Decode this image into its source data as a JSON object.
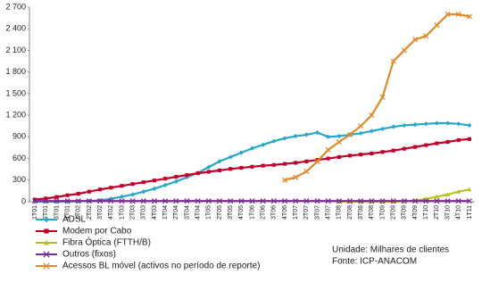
{
  "chart_data": {
    "type": "line",
    "categories": [
      "1T01",
      "2T01",
      "3T01",
      "4T01",
      "1T02",
      "2T02",
      "3T02",
      "4T02",
      "1T03",
      "2T03",
      "3T03",
      "4T03",
      "1T04",
      "2T04",
      "3T04",
      "4T04",
      "1T05",
      "2T05",
      "3T05",
      "4T05",
      "1T06",
      "2T06",
      "3T06",
      "4T06",
      "1T07",
      "2T07",
      "3T07",
      "4T07",
      "1T08",
      "2T08",
      "3T08",
      "4T08",
      "1T09",
      "2T09",
      "3T09",
      "4T09",
      "1T10",
      "2T10",
      "3T10",
      "4T10",
      "1T11"
    ],
    "series": [
      {
        "name": "ADSL",
        "color": "#2aa7c8",
        "marker": "diamond",
        "values": [
          0,
          0,
          0,
          2,
          5,
          10,
          20,
          40,
          70,
          100,
          140,
          180,
          230,
          280,
          340,
          400,
          480,
          560,
          620,
          680,
          740,
          790,
          840,
          880,
          910,
          930,
          960,
          900,
          910,
          930,
          950,
          980,
          1010,
          1040,
          1060,
          1070,
          1080,
          1090,
          1090,
          1080,
          1060
        ]
      },
      {
        "name": "Modem por Cabo",
        "color": "#c0002a",
        "marker": "square",
        "values": [
          30,
          45,
          65,
          90,
          110,
          140,
          170,
          195,
          220,
          245,
          270,
          295,
          320,
          345,
          370,
          395,
          415,
          435,
          455,
          470,
          485,
          500,
          510,
          525,
          540,
          560,
          580,
          600,
          620,
          640,
          655,
          670,
          690,
          710,
          735,
          760,
          785,
          810,
          830,
          855,
          870
        ]
      },
      {
        "name": "Fibra Óptica (FTTH/B)",
        "color": "#b5c31f",
        "marker": "triangle",
        "values": [
          null,
          null,
          null,
          null,
          null,
          null,
          null,
          null,
          null,
          null,
          null,
          null,
          null,
          null,
          null,
          null,
          null,
          null,
          null,
          null,
          null,
          null,
          null,
          null,
          null,
          null,
          null,
          null,
          0,
          0,
          0,
          0,
          0,
          0,
          5,
          15,
          40,
          70,
          100,
          140,
          170
        ]
      },
      {
        "name": "Outros (fixos)",
        "color": "#7b2c8c",
        "marker": "x",
        "values": [
          10,
          10,
          10,
          10,
          10,
          10,
          10,
          10,
          10,
          10,
          10,
          10,
          10,
          10,
          10,
          10,
          10,
          10,
          10,
          10,
          10,
          10,
          10,
          10,
          10,
          10,
          10,
          10,
          10,
          10,
          10,
          10,
          10,
          10,
          10,
          10,
          10,
          10,
          10,
          10,
          10
        ]
      },
      {
        "name": "Acessos BL móvel (activos no período de reporte)",
        "color": "#e08a2a",
        "marker": "x",
        "values": [
          null,
          null,
          null,
          null,
          null,
          null,
          null,
          null,
          null,
          null,
          null,
          null,
          null,
          null,
          null,
          null,
          null,
          null,
          null,
          null,
          null,
          null,
          null,
          300,
          340,
          420,
          560,
          720,
          830,
          930,
          1050,
          1200,
          1450,
          1950,
          2100,
          2250,
          2300,
          2450,
          2600,
          2600,
          2570
        ]
      }
    ],
    "ylim": [
      0,
      2700
    ],
    "yticks": [
      0,
      300,
      600,
      900,
      {
        "value": 1200,
        "label": "1 200"
      },
      {
        "value": 1500,
        "label": "1 500"
      },
      {
        "value": 1800,
        "label": "1 800"
      },
      {
        "value": 2100,
        "label": "2 100"
      },
      {
        "value": 2400,
        "label": "2 400"
      },
      {
        "value": 2700,
        "label": "2 700"
      }
    ],
    "annotations": [
      "Unidade: Milhares de clientes",
      "Fonte: ICP-ANACOM"
    ]
  }
}
